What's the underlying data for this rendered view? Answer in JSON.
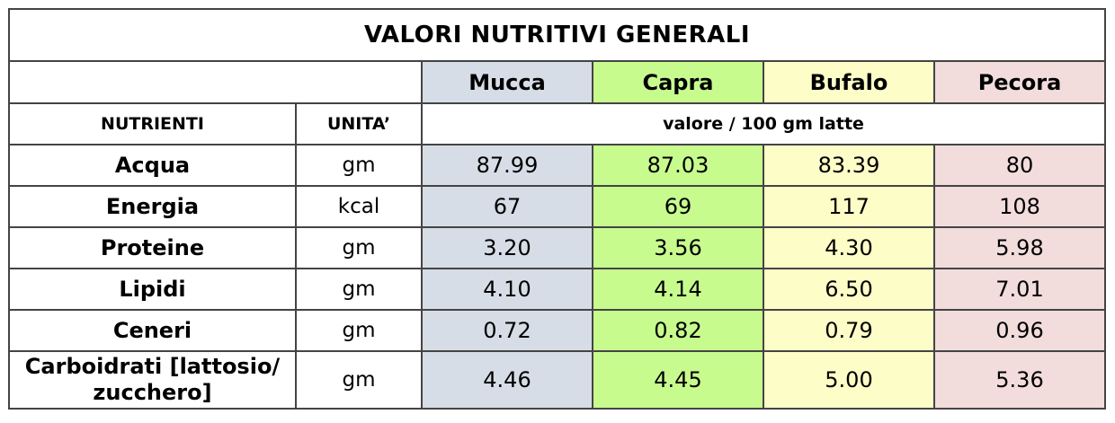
{
  "title": "VALORI  NUTRITIVI GENERALI",
  "animals": [
    {
      "label": "Mucca",
      "color": "#d6dde6"
    },
    {
      "label": "Capra",
      "color": "#c8fb8e"
    },
    {
      "label": "Bufalo",
      "color": "#fdfdc8"
    },
    {
      "label": "Pecora",
      "color": "#f2dcdc"
    }
  ],
  "columns": {
    "nutrient": "NUTRIENTI",
    "unit": "UNITA’",
    "value": "valore / 100 gm latte"
  },
  "rows": [
    {
      "name": "Acqua",
      "unit": "gm",
      "values": [
        "87.99",
        "87.03",
        "83.39",
        "80"
      ]
    },
    {
      "name": "Energia",
      "unit": "kcal",
      "values": [
        "67",
        "69",
        "117",
        "108"
      ]
    },
    {
      "name": "Proteine",
      "unit": "gm",
      "values": [
        "3.20",
        "3.56",
        "4.30",
        "5.98"
      ]
    },
    {
      "name": "Lipidi",
      "unit": "gm",
      "values": [
        "4.10",
        "4.14",
        "6.50",
        "7.01"
      ]
    },
    {
      "name": "Ceneri",
      "unit": "gm",
      "values": [
        "0.72",
        "0.82",
        "0.79",
        "0.96"
      ]
    },
    {
      "name": "Carboidrati [lattosio/ zucchero]",
      "unit": "gm",
      "values": [
        "4.46",
        "4.45",
        "5.00",
        "5.36"
      ]
    }
  ]
}
